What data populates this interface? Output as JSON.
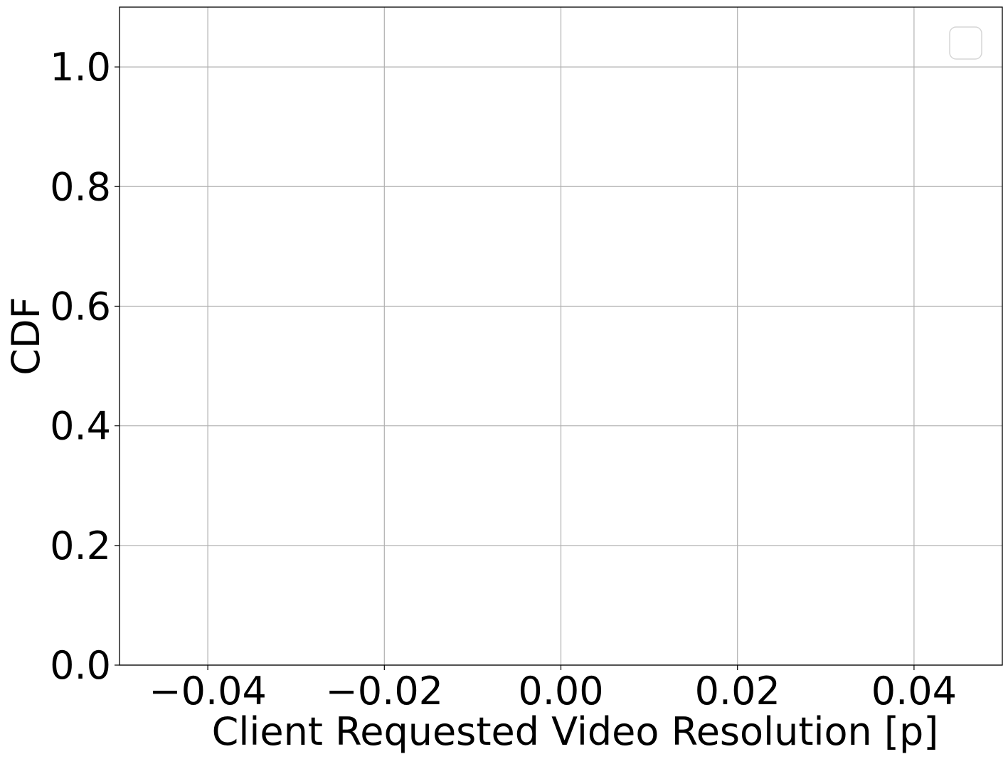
{
  "chart_data": {
    "type": "line",
    "title": "",
    "xlabel": "Client Requested Video Resolution [p]",
    "ylabel": "CDF",
    "xlim": [
      -0.05,
      0.05
    ],
    "ylim": [
      0.0,
      1.1
    ],
    "x_ticks": [
      -0.04,
      -0.02,
      0.0,
      0.02,
      0.04
    ],
    "x_tick_labels": [
      "−0.04",
      "−0.02",
      "0.00",
      "0.02",
      "0.04"
    ],
    "y_ticks": [
      0.0,
      0.2,
      0.4,
      0.6,
      0.8,
      1.0
    ],
    "y_tick_labels": [
      "0.0",
      "0.2",
      "0.4",
      "0.6",
      "0.8",
      "1.0"
    ],
    "grid": true,
    "legend": {
      "placement": "top-right",
      "entries": []
    },
    "series": []
  }
}
